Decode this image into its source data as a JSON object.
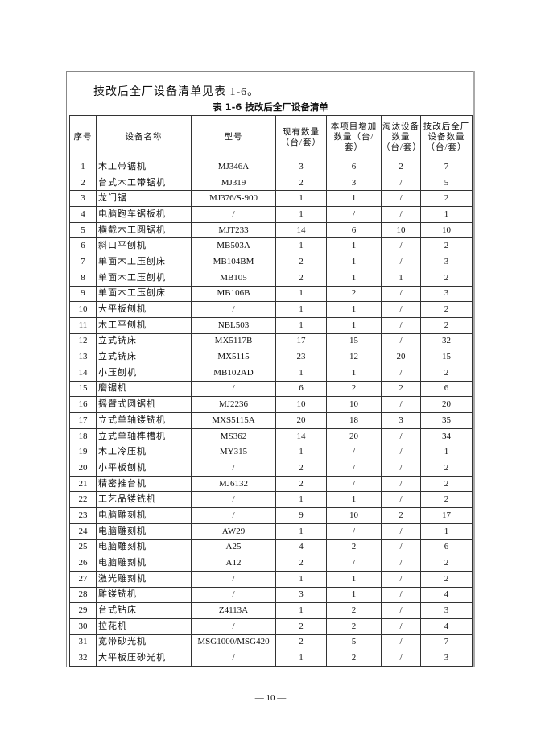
{
  "intro_text": "技改后全厂设备清单见表 1-6。",
  "table": {
    "title": "表 1-6  技改后全厂设备清单",
    "headers": [
      "序号",
      "设备名称",
      "型号",
      "现有数量（台/套）",
      "本项目增加数量（台/套）",
      "淘汰设备数量（台/套）",
      "技改后全厂设备数量（台/套）"
    ],
    "rows": [
      [
        "1",
        "木工带锯机",
        "MJ346A",
        "3",
        "6",
        "2",
        "7"
      ],
      [
        "2",
        "台式木工带锯机",
        "MJ319",
        "2",
        "3",
        "/",
        "5"
      ],
      [
        "3",
        "龙门锯",
        "MJ376/S-900",
        "1",
        "1",
        "/",
        "2"
      ],
      [
        "4",
        "电脑跑车锯板机",
        "/",
        "1",
        "/",
        "/",
        "1"
      ],
      [
        "5",
        "横截木工圆锯机",
        "MJT233",
        "14",
        "6",
        "10",
        "10"
      ],
      [
        "6",
        "斜口平刨机",
        "MB503A",
        "1",
        "1",
        "/",
        "2"
      ],
      [
        "7",
        "单面木工压刨床",
        "MB104BM",
        "2",
        "1",
        "/",
        "3"
      ],
      [
        "8",
        "单面木工压刨机",
        "MB105",
        "2",
        "1",
        "1",
        "2"
      ],
      [
        "9",
        "单面木工压刨床",
        "MB106B",
        "1",
        "2",
        "/",
        "3"
      ],
      [
        "10",
        "大平板刨机",
        "/",
        "1",
        "1",
        "/",
        "2"
      ],
      [
        "11",
        "木工平刨机",
        "NBL503",
        "1",
        "1",
        "/",
        "2"
      ],
      [
        "12",
        "立式铣床",
        "MX5117B",
        "17",
        "15",
        "/",
        "32"
      ],
      [
        "13",
        "立式铣床",
        "MX5115",
        "23",
        "12",
        "20",
        "15"
      ],
      [
        "14",
        "小压刨机",
        "MB102AD",
        "1",
        "1",
        "/",
        "2"
      ],
      [
        "15",
        "磨锯机",
        "/",
        "6",
        "2",
        "2",
        "6"
      ],
      [
        "16",
        "摇臂式圆锯机",
        "MJ2236",
        "10",
        "10",
        "/",
        "20"
      ],
      [
        "17",
        "立式单轴镂铣机",
        "MXS5115A",
        "20",
        "18",
        "3",
        "35"
      ],
      [
        "18",
        "立式单轴榫槽机",
        "MS362",
        "14",
        "20",
        "/",
        "34"
      ],
      [
        "19",
        "木工冷压机",
        "MY315",
        "1",
        "/",
        "/",
        "1"
      ],
      [
        "20",
        "小平板刨机",
        "/",
        "2",
        "/",
        "/",
        "2"
      ],
      [
        "21",
        "精密推台机",
        "MJ6132",
        "2",
        "/",
        "/",
        "2"
      ],
      [
        "22",
        "工艺品镂铣机",
        "/",
        "1",
        "1",
        "/",
        "2"
      ],
      [
        "23",
        "电脑雕刻机",
        "/",
        "9",
        "10",
        "2",
        "17"
      ],
      [
        "24",
        "电脑雕刻机",
        "AW29",
        "1",
        "/",
        "/",
        "1"
      ],
      [
        "25",
        "电脑雕刻机",
        "A25",
        "4",
        "2",
        "/",
        "6"
      ],
      [
        "26",
        "电脑雕刻机",
        "A12",
        "2",
        "/",
        "/",
        "2"
      ],
      [
        "27",
        "激光雕刻机",
        "/",
        "1",
        "1",
        "/",
        "2"
      ],
      [
        "28",
        "雕镂铣机",
        "/",
        "3",
        "1",
        "/",
        "4"
      ],
      [
        "29",
        "台式钻床",
        "Z4113A",
        "1",
        "2",
        "/",
        "3"
      ],
      [
        "30",
        "拉花机",
        "/",
        "2",
        "2",
        "/",
        "4"
      ],
      [
        "31",
        "宽带砂光机",
        "MSG1000/MSG420",
        "2",
        "5",
        "/",
        "7"
      ],
      [
        "32",
        "大平板压砂光机",
        "/",
        "1",
        "2",
        "/",
        "3"
      ]
    ]
  },
  "page_number": "— 10 —"
}
